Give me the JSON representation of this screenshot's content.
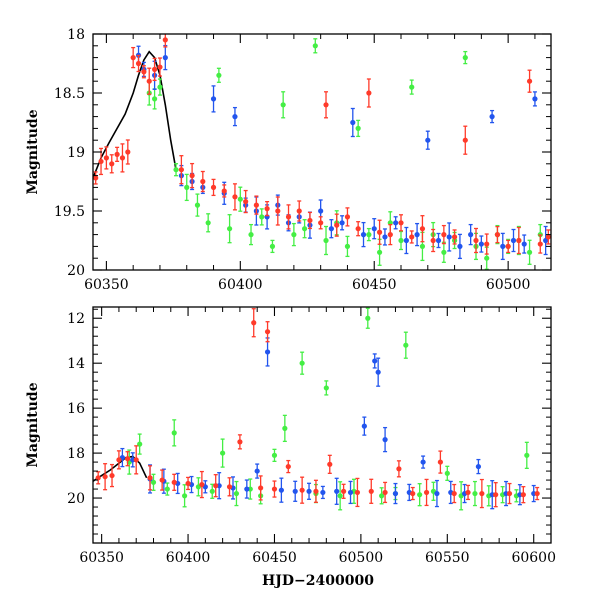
{
  "chart_data": [
    {
      "type": "scatter",
      "panel": "top",
      "title": "",
      "xlabel": "",
      "ylabel": "Magnitude",
      "xlim": [
        60345,
        60516
      ],
      "ylim": [
        18,
        20
      ],
      "y_inverted": true,
      "x_ticks": [
        60350,
        60400,
        60450,
        60500
      ],
      "y_ticks": [
        18,
        18.5,
        19,
        19.5,
        20
      ],
      "x_tick_labels": [
        "60350",
        "60400",
        "60450",
        "60500"
      ],
      "y_tick_labels": [
        "18",
        "18.5",
        "19",
        "19.5",
        "20"
      ],
      "grid": false,
      "legend": "none",
      "series": [
        {
          "color": "#ff3a2a",
          "marker": "dot-with-error-bars",
          "points": [
            [
              60346,
              19.22
            ],
            [
              60348,
              19.08
            ],
            [
              60350,
              19.05
            ],
            [
              60352,
              19.1
            ],
            [
              60354,
              19.02
            ],
            [
              60356,
              19.05
            ],
            [
              60358,
              19.0
            ],
            [
              60360,
              18.2
            ],
            [
              60362,
              18.25
            ],
            [
              60364,
              18.32
            ],
            [
              60366,
              18.4
            ],
            [
              60368,
              18.3
            ],
            [
              60370,
              18.28
            ],
            [
              60372,
              18.05
            ],
            [
              60378,
              19.15
            ],
            [
              60382,
              19.2
            ],
            [
              60386,
              19.25
            ],
            [
              60390,
              19.3
            ],
            [
              60394,
              19.33
            ],
            [
              60398,
              19.38
            ],
            [
              60402,
              19.42
            ],
            [
              60406,
              19.45
            ],
            [
              60410,
              19.48
            ],
            [
              60414,
              19.5
            ],
            [
              60418,
              19.55
            ],
            [
              60422,
              19.5
            ],
            [
              60426,
              19.58
            ],
            [
              60430,
              19.6
            ],
            [
              60432,
              18.6
            ],
            [
              60436,
              19.62
            ],
            [
              60440,
              19.55
            ],
            [
              60444,
              19.65
            ],
            [
              60448,
              18.5
            ],
            [
              60452,
              19.68
            ],
            [
              60456,
              19.7
            ],
            [
              60460,
              19.6
            ],
            [
              60464,
              19.72
            ],
            [
              60468,
              19.65
            ],
            [
              60472,
              19.75
            ],
            [
              60476,
              19.7
            ],
            [
              60480,
              19.72
            ],
            [
              60484,
              18.9
            ],
            [
              60488,
              19.75
            ],
            [
              60492,
              19.78
            ],
            [
              60496,
              19.7
            ],
            [
              60500,
              19.8
            ],
            [
              60504,
              19.75
            ],
            [
              60508,
              18.4
            ],
            [
              60512,
              19.78
            ],
            [
              60515,
              19.72
            ]
          ]
        },
        {
          "color": "#2255ee",
          "marker": "dot-with-error-bars",
          "points": [
            [
              60362,
              18.18
            ],
            [
              60364,
              18.3
            ],
            [
              60368,
              18.35
            ],
            [
              60372,
              18.2
            ],
            [
              60378,
              19.2
            ],
            [
              60382,
              19.25
            ],
            [
              60386,
              19.3
            ],
            [
              60390,
              18.55
            ],
            [
              60394,
              19.35
            ],
            [
              60398,
              18.7
            ],
            [
              60402,
              19.45
            ],
            [
              60406,
              19.5
            ],
            [
              60410,
              19.55
            ],
            [
              60414,
              19.45
            ],
            [
              60418,
              19.6
            ],
            [
              60422,
              19.55
            ],
            [
              60426,
              19.62
            ],
            [
              60430,
              19.5
            ],
            [
              60434,
              19.65
            ],
            [
              60438,
              19.6
            ],
            [
              60442,
              18.75
            ],
            [
              60446,
              19.7
            ],
            [
              60450,
              19.65
            ],
            [
              60454,
              19.72
            ],
            [
              60458,
              19.6
            ],
            [
              60462,
              19.75
            ],
            [
              60466,
              19.7
            ],
            [
              60470,
              18.9
            ],
            [
              60474,
              19.75
            ],
            [
              60478,
              19.72
            ],
            [
              60482,
              19.8
            ],
            [
              60486,
              19.7
            ],
            [
              60490,
              19.78
            ],
            [
              60494,
              18.7
            ],
            [
              60498,
              19.8
            ],
            [
              60502,
              19.75
            ],
            [
              60506,
              19.78
            ],
            [
              60510,
              18.55
            ],
            [
              60514,
              19.75
            ]
          ]
        },
        {
          "color": "#44ee44",
          "marker": "dot-with-error-bars",
          "points": [
            [
              60366,
              18.5
            ],
            [
              60368,
              18.55
            ],
            [
              60370,
              18.45
            ],
            [
              60376,
              19.15
            ],
            [
              60380,
              19.3
            ],
            [
              60384,
              19.45
            ],
            [
              60388,
              19.6
            ],
            [
              60392,
              18.35
            ],
            [
              60396,
              19.65
            ],
            [
              60400,
              19.4
            ],
            [
              60404,
              19.7
            ],
            [
              60408,
              19.55
            ],
            [
              60412,
              19.8
            ],
            [
              60416,
              18.6
            ],
            [
              60420,
              19.7
            ],
            [
              60424,
              19.65
            ],
            [
              60428,
              18.1
            ],
            [
              60432,
              19.75
            ],
            [
              60436,
              19.6
            ],
            [
              60440,
              19.8
            ],
            [
              60444,
              18.8
            ],
            [
              60448,
              19.7
            ],
            [
              60452,
              19.85
            ],
            [
              60456,
              19.6
            ],
            [
              60460,
              19.75
            ],
            [
              60464,
              18.45
            ],
            [
              60468,
              19.8
            ],
            [
              60472,
              19.7
            ],
            [
              60476,
              19.85
            ],
            [
              60480,
              19.75
            ],
            [
              60484,
              18.2
            ],
            [
              60488,
              19.8
            ],
            [
              60492,
              19.9
            ],
            [
              60496,
              19.7
            ],
            [
              60500,
              19.8
            ],
            [
              60504,
              19.75
            ],
            [
              60508,
              19.85
            ],
            [
              60512,
              19.7
            ]
          ]
        }
      ],
      "model_curve": {
        "color": "#000000",
        "x": [
          60345,
          60348,
          60351,
          60354,
          60357,
          60360,
          60362,
          60364,
          60366,
          60368,
          60370,
          60372,
          60374,
          60376
        ],
        "y": [
          19.22,
          19.05,
          18.92,
          18.8,
          18.68,
          18.5,
          18.35,
          18.22,
          18.15,
          18.2,
          18.35,
          18.6,
          18.9,
          19.15
        ]
      }
    },
    {
      "type": "scatter",
      "panel": "bottom",
      "title": "",
      "xlabel": "HJD−2400000",
      "ylabel": "Magnitude",
      "xlim": [
        60345,
        60610
      ],
      "ylim": [
        11.5,
        22
      ],
      "y_inverted": true,
      "x_ticks": [
        60350,
        60400,
        60450,
        60500,
        60550,
        60600
      ],
      "y_ticks": [
        12,
        14,
        16,
        18,
        20
      ],
      "x_tick_labels": [
        "60350",
        "60400",
        "60450",
        "60500",
        "60550",
        "60600"
      ],
      "y_tick_labels": [
        "12",
        "14",
        "16",
        "18",
        "20"
      ],
      "grid": false,
      "legend": "none",
      "series": [
        {
          "color": "#ff3a2a",
          "marker": "dot-with-error-bars",
          "points": [
            [
              60348,
              19.1
            ],
            [
              60352,
              19.05
            ],
            [
              60356,
              19.0
            ],
            [
              60360,
              18.3
            ],
            [
              60365,
              18.25
            ],
            [
              60370,
              18.3
            ],
            [
              60378,
              19.1
            ],
            [
              60385,
              19.2
            ],
            [
              60392,
              19.3
            ],
            [
              60400,
              19.35
            ],
            [
              60408,
              19.4
            ],
            [
              60416,
              19.45
            ],
            [
              60424,
              19.5
            ],
            [
              60430,
              17.5
            ],
            [
              60438,
              12.2
            ],
            [
              60442,
              19.55
            ],
            [
              60446,
              12.6
            ],
            [
              60450,
              19.6
            ],
            [
              60458,
              18.6
            ],
            [
              60466,
              19.65
            ],
            [
              60474,
              19.7
            ],
            [
              60482,
              18.5
            ],
            [
              60490,
              19.7
            ],
            [
              60498,
              19.75
            ],
            [
              60506,
              19.7
            ],
            [
              60514,
              19.75
            ],
            [
              60522,
              18.7
            ],
            [
              60530,
              19.8
            ],
            [
              60538,
              19.75
            ],
            [
              60546,
              18.4
            ],
            [
              60554,
              19.8
            ],
            [
              60562,
              19.75
            ],
            [
              60570,
              19.8
            ],
            [
              60578,
              19.85
            ],
            [
              60586,
              19.8
            ],
            [
              60594,
              19.85
            ],
            [
              60602,
              19.8
            ]
          ]
        },
        {
          "color": "#2255ee",
          "marker": "dot-with-error-bars",
          "points": [
            [
              60362,
              18.2
            ],
            [
              60368,
              18.3
            ],
            [
              60378,
              19.15
            ],
            [
              60386,
              19.25
            ],
            [
              60394,
              19.35
            ],
            [
              60402,
              19.4
            ],
            [
              60410,
              19.5
            ],
            [
              60418,
              19.45
            ],
            [
              60426,
              19.55
            ],
            [
              60434,
              19.6
            ],
            [
              60440,
              18.8
            ],
            [
              60446,
              13.5
            ],
            [
              60454,
              19.65
            ],
            [
              60462,
              19.7
            ],
            [
              60470,
              19.7
            ],
            [
              60478,
              19.75
            ],
            [
              60486,
              19.7
            ],
            [
              60494,
              19.75
            ],
            [
              60502,
              16.8
            ],
            [
              60508,
              13.9
            ],
            [
              60510,
              14.4
            ],
            [
              60514,
              17.4
            ],
            [
              60520,
              19.8
            ],
            [
              60528,
              19.75
            ],
            [
              60536,
              18.4
            ],
            [
              60544,
              19.8
            ],
            [
              60552,
              19.75
            ],
            [
              60560,
              19.8
            ],
            [
              60568,
              18.6
            ],
            [
              60576,
              19.85
            ],
            [
              60584,
              19.8
            ],
            [
              60592,
              19.85
            ],
            [
              60600,
              19.8
            ]
          ]
        },
        {
          "color": "#44ee44",
          "marker": "dot-with-error-bars",
          "points": [
            [
              60366,
              18.4
            ],
            [
              60372,
              17.6
            ],
            [
              60380,
              19.3
            ],
            [
              60388,
              19.6
            ],
            [
              60392,
              17.1
            ],
            [
              60398,
              19.9
            ],
            [
              60406,
              19.5
            ],
            [
              60414,
              19.7
            ],
            [
              60420,
              18.0
            ],
            [
              60428,
              19.8
            ],
            [
              60436,
              19.6
            ],
            [
              60442,
              19.9
            ],
            [
              60450,
              18.1
            ],
            [
              60456,
              16.9
            ],
            [
              60466,
              14.0
            ],
            [
              60474,
              19.8
            ],
            [
              60480,
              15.1
            ],
            [
              60488,
              19.9
            ],
            [
              60496,
              19.7
            ],
            [
              60504,
              12.0
            ],
            [
              60512,
              19.9
            ],
            [
              60520,
              19.8
            ],
            [
              60526,
              13.2
            ],
            [
              60534,
              19.85
            ],
            [
              60542,
              19.7
            ],
            [
              60550,
              18.9
            ],
            [
              60558,
              19.9
            ],
            [
              60566,
              19.8
            ],
            [
              60574,
              19.9
            ],
            [
              60582,
              19.85
            ],
            [
              60590,
              19.9
            ],
            [
              60596,
              18.1
            ]
          ]
        }
      ],
      "model_curve": {
        "color": "#000000",
        "x": [
          60345,
          60350,
          60355,
          60360,
          60364,
          60368,
          60372,
          60376
        ],
        "y": [
          19.25,
          19.0,
          18.75,
          18.45,
          18.2,
          18.15,
          18.45,
          19.1
        ]
      }
    }
  ]
}
